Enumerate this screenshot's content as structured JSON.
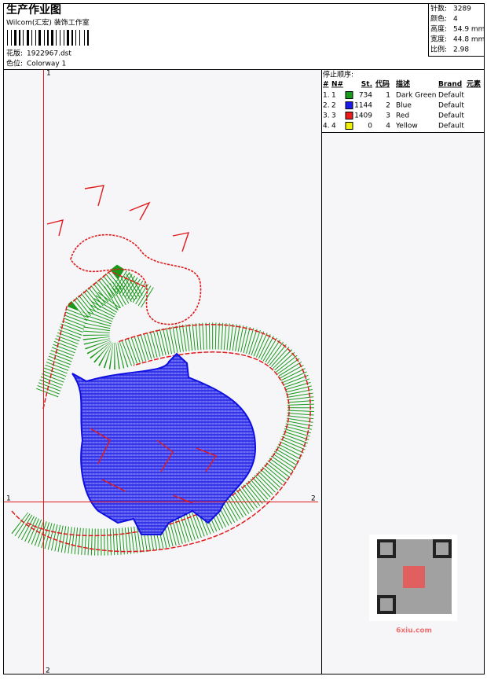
{
  "header": {
    "title": "生产作业图",
    "studio": "Wilcom(汇宏) 装饰工作室",
    "design_label": "花版:",
    "design": "1922967.dst",
    "colorway_label": "色位:",
    "colorway": "Colorway 1"
  },
  "summary": [
    {
      "label": "针数:",
      "value": "3289"
    },
    {
      "label": "颜色:",
      "value": "4"
    },
    {
      "label": "高度:",
      "value": "54.9 mm"
    },
    {
      "label": "宽度:",
      "value": "44.8 mm"
    },
    {
      "label": "比例:",
      "value": "2.98"
    }
  ],
  "stop_sequence": {
    "title": "停止顺序:",
    "columns": [
      "#",
      "N#",
      "St.",
      "代码",
      "描述",
      "Brand",
      "元素"
    ],
    "rows": [
      {
        "index": "1.",
        "nr": "1",
        "color": "#1a9a1a",
        "stitches": "734",
        "code": "1",
        "description": "Dark Green",
        "brand": "Default"
      },
      {
        "index": "2.",
        "nr": "2",
        "color": "#1a1aee",
        "stitches": "1144",
        "code": "2",
        "description": "Blue",
        "brand": "Default"
      },
      {
        "index": "3.",
        "nr": "3",
        "color": "#ee1a1a",
        "stitches": "1409",
        "code": "3",
        "description": "Red",
        "brand": "Default"
      },
      {
        "index": "4.",
        "nr": "4",
        "color": "#f0f000",
        "stitches": "0",
        "code": "4",
        "description": "Yellow",
        "brand": "Default"
      }
    ]
  },
  "axis_labels": {
    "top": "1",
    "left": "1",
    "right": "2",
    "bottom": "2"
  },
  "watermark": "6xiu.com"
}
